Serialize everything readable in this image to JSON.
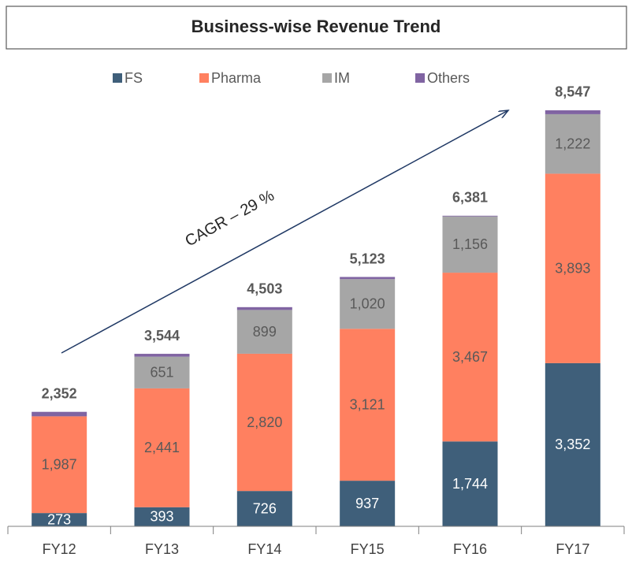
{
  "chart_data": {
    "type": "stacked_bar",
    "title": "Business-wise Revenue Trend",
    "categories": [
      "FY12",
      "FY13",
      "FY14",
      "FY15",
      "FY16",
      "FY17"
    ],
    "series": [
      {
        "name": "FS",
        "color": "#3f5f7a",
        "values": [
          273,
          393,
          726,
          937,
          1744,
          3352
        ],
        "value_labels": [
          "273",
          "393",
          "726",
          "937",
          "1,744",
          "3,352"
        ]
      },
      {
        "name": "Pharma",
        "color": "#ff8060",
        "values": [
          1987,
          2441,
          2820,
          3121,
          3467,
          3893
        ],
        "value_labels": [
          "1,987",
          "2,441",
          "2,820",
          "3,121",
          "3,467",
          "3,893"
        ]
      },
      {
        "name": "IM",
        "color": "#a6a6a6",
        "values": [
          null,
          651,
          899,
          1020,
          1156,
          1222
        ],
        "value_labels": [
          null,
          "651",
          "899",
          "1,020",
          "1,156",
          "1,222"
        ]
      },
      {
        "name": "Others",
        "color": "#8064a2",
        "values": [
          92,
          59,
          58,
          45,
          14,
          80
        ]
      }
    ],
    "totals": [
      2352,
      3544,
      4503,
      5123,
      6381,
      8547
    ],
    "total_labels": [
      "2,352",
      "3,544",
      "4,503",
      "5,123",
      "6,381",
      "8,547"
    ],
    "annotation": "CAGR –  29 %",
    "ylim": [
      0,
      9000
    ]
  }
}
